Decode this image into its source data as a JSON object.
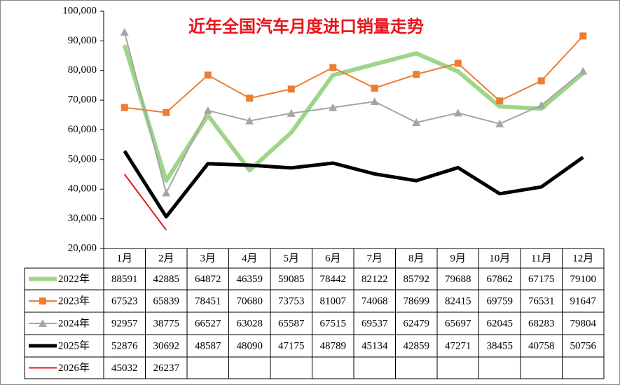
{
  "chart_data": {
    "type": "line",
    "title": "近年全国汽车月度进口销量走势",
    "categories": [
      "1月",
      "2月",
      "3月",
      "4月",
      "5月",
      "6月",
      "7月",
      "8月",
      "9月",
      "10月",
      "11月",
      "12月"
    ],
    "ylim": [
      20000,
      100000
    ],
    "yticks": [
      {
        "value": 20000,
        "label": "20,000"
      },
      {
        "value": 30000,
        "label": "30,000"
      },
      {
        "value": 40000,
        "label": "40,000"
      },
      {
        "value": 50000,
        "label": "50,000"
      },
      {
        "value": 60000,
        "label": "60,000"
      },
      {
        "value": 70000,
        "label": "70,000"
      },
      {
        "value": 80000,
        "label": "80,000"
      },
      {
        "value": 90000,
        "label": "90,000"
      },
      {
        "value": 100000,
        "label": "100,000"
      }
    ],
    "series": [
      {
        "name": "2022年",
        "color": "#9dd68a",
        "values": [
          88591,
          42885,
          64872,
          46359,
          59085,
          78442,
          82122,
          85792,
          79688,
          67862,
          67175,
          79100
        ]
      },
      {
        "name": "2023年",
        "color": "#ed7d31",
        "values": [
          67523,
          65839,
          78451,
          70680,
          73753,
          81007,
          74068,
          78699,
          82415,
          69759,
          76531,
          91647
        ]
      },
      {
        "name": "2024年",
        "color": "#a5a5a5",
        "values": [
          92957,
          38775,
          66527,
          63028,
          65587,
          67515,
          69537,
          62479,
          65697,
          62045,
          68283,
          79804
        ]
      },
      {
        "name": "2025年",
        "color": "#000000",
        "values": [
          52876,
          30692,
          48587,
          48090,
          47175,
          48789,
          45134,
          42859,
          47271,
          38455,
          40758,
          50756
        ]
      },
      {
        "name": "2026年",
        "color": "#e8141b",
        "values": [
          45032,
          26237,
          null,
          null,
          null,
          null,
          null,
          null,
          null,
          null,
          null,
          null
        ]
      }
    ]
  }
}
